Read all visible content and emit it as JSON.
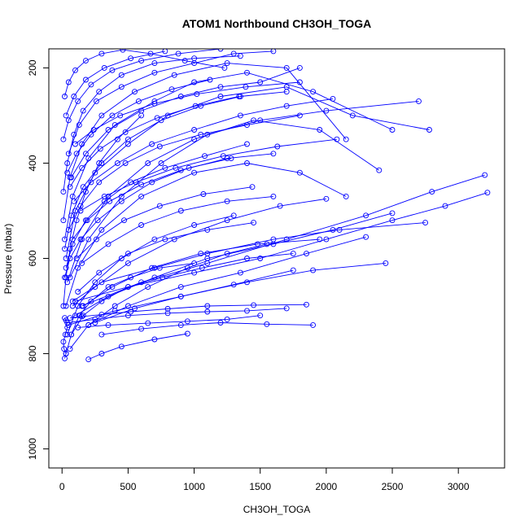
{
  "chart_data": {
    "type": "line",
    "title": "ATOM1 Northbound CH3OH_TOGA",
    "xlabel": "CH3OH_TOGA",
    "ylabel": "Pressure (mbar)",
    "xlim": [
      -100,
      3350
    ],
    "ylim": [
      1040,
      160
    ],
    "y_reversed": true,
    "grid": false,
    "series_color": "#0000ff",
    "marker": "open-circle",
    "x_ticks": [
      {
        "value": 0,
        "label": "0"
      },
      {
        "value": 500,
        "label": "500"
      },
      {
        "value": 1000,
        "label": "1000"
      },
      {
        "value": 1500,
        "label": "1500"
      },
      {
        "value": 2000,
        "label": "2000"
      },
      {
        "value": 2500,
        "label": "2500"
      },
      {
        "value": 3000,
        "label": "3000"
      }
    ],
    "y_ticks": [
      {
        "value": 200,
        "label": "200"
      },
      {
        "value": 400,
        "label": "400"
      },
      {
        "value": 600,
        "label": "600"
      },
      {
        "value": 800,
        "label": "800"
      },
      {
        "value": 1000,
        "label": "1000"
      }
    ],
    "series": [
      {
        "x": [
          20,
          30,
          15,
          10,
          25,
          40,
          30,
          20
        ],
        "y": [
          810,
          800,
          790,
          775,
          760,
          745,
          730,
          725
        ]
      },
      {
        "x": [
          60,
          150,
          300,
          520,
          800,
          1100,
          1450,
          1850
        ],
        "y": [
          725,
          722,
          718,
          712,
          706,
          700,
          698,
          697
        ]
      },
      {
        "x": [
          40,
          250,
          500,
          800,
          1100,
          1400,
          1700
        ],
        "y": [
          735,
          728,
          720,
          715,
          712,
          710,
          705
        ]
      },
      {
        "x": [
          120,
          350,
          650,
          950,
          1250,
          1500
        ],
        "y": [
          745,
          740,
          736,
          732,
          728,
          720
        ]
      },
      {
        "x": [
          200,
          300,
          450,
          700,
          950
        ],
        "y": [
          812,
          800,
          785,
          770,
          758
        ]
      },
      {
        "x": [
          300,
          600,
          900,
          1200,
          1550,
          1900
        ],
        "y": [
          760,
          748,
          740,
          735,
          738,
          740
        ]
      },
      {
        "x": [
          80,
          300,
          700,
          1100,
          1600,
          2100,
          2750
        ],
        "y": [
          690,
          650,
          620,
          590,
          560,
          540,
          525
        ]
      },
      {
        "x": [
          100,
          500,
          1000,
          1500,
          2000,
          2500,
          2900,
          3220
        ],
        "y": [
          690,
          660,
          630,
          600,
          560,
          520,
          490,
          462
        ]
      },
      {
        "x": [
          150,
          600,
          1100,
          1700,
          2300,
          2800,
          3200
        ],
        "y": [
          700,
          650,
          610,
          560,
          510,
          460,
          425
        ]
      },
      {
        "x": [
          50,
          400,
          900,
          1400,
          1900,
          2450
        ],
        "y": [
          740,
          710,
          680,
          650,
          625,
          610
        ]
      },
      {
        "x": [
          60,
          200,
          450,
          750,
          1100,
          1500,
          2000,
          2700
        ],
        "y": [
          640,
          560,
          470,
          400,
          340,
          310,
          290,
          270
        ]
      },
      {
        "x": [
          30,
          100,
          250,
          500,
          800,
          1200,
          1700,
          2200,
          2780
        ],
        "y": [
          600,
          500,
          420,
          360,
          300,
          260,
          240,
          300,
          330
        ]
      },
      {
        "x": [
          20,
          80,
          200,
          400,
          700,
          1000,
          1400,
          1900,
          2500
        ],
        "y": [
          560,
          470,
          390,
          320,
          270,
          230,
          210,
          250,
          330
        ]
      },
      {
        "x": [
          40,
          150,
          350,
          650,
          1000,
          1450,
          1950,
          2400
        ],
        "y": [
          650,
          560,
          470,
          400,
          350,
          310,
          330,
          415
        ]
      },
      {
        "x": [
          10,
          60,
          150,
          300,
          550,
          850,
          1250,
          1700,
          2150
        ],
        "y": [
          520,
          430,
          360,
          300,
          250,
          215,
          190,
          200,
          350
        ]
      },
      {
        "x": [
          30,
          120,
          300,
          600,
          1000,
          1400,
          1800,
          2150
        ],
        "y": [
          700,
          620,
          540,
          470,
          420,
          400,
          420,
          470
        ]
      },
      {
        "x": [
          80,
          250,
          500,
          850,
          1250,
          1650,
          2000
        ],
        "y": [
          700,
          660,
          610,
          560,
          520,
          490,
          475
        ]
      },
      {
        "x": [
          100,
          350,
          700,
          1100,
          1600,
          2050,
          2500
        ],
        "y": [
          720,
          680,
          640,
          600,
          570,
          540,
          505
        ]
      },
      {
        "x": [
          200,
          500,
          900,
          1350,
          1850,
          2300
        ],
        "y": [
          740,
          700,
          660,
          630,
          590,
          555
        ]
      },
      {
        "x": [
          250,
          550,
          900,
          1300,
          1750
        ],
        "y": [
          735,
          705,
          680,
          655,
          625
        ]
      },
      {
        "x": [
          10,
          40,
          90,
          160,
          280,
          450,
          700,
          1000,
          1350
        ],
        "y": [
          460,
          400,
          340,
          290,
          250,
          215,
          190,
          180,
          175
        ]
      },
      {
        "x": [
          50,
          130,
          260,
          450,
          700,
          1000,
          1300,
          1600
        ],
        "y": [
          380,
          320,
          270,
          240,
          210,
          190,
          170,
          165
        ]
      },
      {
        "x": [
          70,
          180,
          350,
          600,
          900,
          1200,
          1500,
          1800
        ],
        "y": [
          430,
          380,
          330,
          290,
          260,
          240,
          230,
          200
        ]
      },
      {
        "x": [
          20,
          70,
          160,
          300,
          500,
          750,
          1050,
          1350,
          1700
        ],
        "y": [
          580,
          510,
          450,
          400,
          350,
          310,
          280,
          260,
          250
        ]
      },
      {
        "x": [
          40,
          120,
          250,
          450,
          700,
          1000,
          1300
        ],
        "y": [
          760,
          700,
          650,
          600,
          560,
          530,
          510
        ]
      },
      {
        "x": [
          60,
          200,
          400,
          650,
          950,
          1250,
          1550
        ],
        "y": [
          790,
          740,
          700,
          660,
          620,
          590,
          570
        ]
      },
      {
        "x": [
          30,
          80,
          180,
          320,
          520,
          780,
          1080,
          1400
        ],
        "y": [
          620,
          570,
          520,
          480,
          440,
          410,
          385,
          360
        ]
      },
      {
        "x": [
          50,
          140,
          280,
          480,
          740,
          1050,
          1400,
          1800
        ],
        "y": [
          540,
          490,
          440,
          400,
          365,
          340,
          320,
          300
        ]
      },
      {
        "x": [
          10,
          50,
          120,
          220,
          380,
          600,
          880,
          1200
        ],
        "y": [
          350,
          310,
          270,
          235,
          205,
          185,
          170,
          160
        ]
      },
      {
        "x": [
          90,
          220,
          420,
          680,
          1000,
          1350,
          1700,
          2050
        ],
        "y": [
          480,
          440,
          400,
          360,
          330,
          300,
          280,
          265
        ]
      },
      {
        "x": [
          70,
          160,
          300,
          500,
          760,
          1060,
          1400,
          1750
        ],
        "y": [
          760,
          720,
          690,
          660,
          640,
          620,
          600,
          590
        ]
      },
      {
        "x": [
          120,
          280,
          500,
          780,
          1100,
          1450
        ],
        "y": [
          670,
          630,
          590,
          560,
          540,
          525
        ]
      },
      {
        "x": [
          150,
          350,
          600,
          900,
          1250,
          1600
        ],
        "y": [
          610,
          570,
          530,
          500,
          480,
          470
        ]
      },
      {
        "x": [
          40,
          110,
          220,
          380,
          580,
          830,
          1120
        ],
        "y": [
          420,
          380,
          340,
          300,
          270,
          245,
          225
        ]
      },
      {
        "x": [
          10,
          30,
          60,
          110,
          180,
          280,
          420,
          600
        ],
        "y": [
          700,
          640,
          580,
          520,
          460,
          400,
          350,
          300
        ]
      },
      {
        "x": [
          30,
          90,
          180,
          320,
          520,
          780
        ],
        "y": [
          300,
          260,
          225,
          200,
          180,
          165
        ]
      },
      {
        "x": [
          80,
          190,
          360,
          600,
          900,
          1250,
          1600
        ],
        "y": [
          560,
          520,
          480,
          445,
          415,
          390,
          380
        ]
      },
      {
        "x": [
          110,
          260,
          470,
          740,
          1070,
          1440
        ],
        "y": [
          600,
          560,
          520,
          490,
          465,
          450
        ]
      },
      {
        "x": [
          20,
          60,
          140,
          270,
          450,
          680,
          960,
          1280
        ],
        "y": [
          640,
          600,
          560,
          520,
          480,
          440,
          410,
          390
        ]
      },
      {
        "x": [
          160,
          380,
          680,
          1050,
          1480,
          1950
        ],
        "y": [
          700,
          660,
          620,
          590,
          570,
          560
        ]
      },
      {
        "x": [
          30,
          70,
          130,
          220,
          350,
          520,
          740,
          1000
        ],
        "y": [
          800,
          760,
          720,
          690,
          660,
          640,
          620,
          610
        ]
      },
      {
        "x": [
          60,
          150,
          290,
          480,
          720,
          1010,
          1340
        ],
        "y": [
          450,
          410,
          370,
          335,
          305,
          280,
          260
        ]
      },
      {
        "x": [
          20,
          50,
          100,
          180,
          300,
          460,
          670,
          930,
          1230
        ],
        "y": [
          260,
          230,
          205,
          185,
          170,
          162,
          170,
          185,
          200
        ]
      },
      {
        "x": [
          140,
          320,
          560,
          860,
          1220,
          1630,
          2080
        ],
        "y": [
          500,
          470,
          440,
          410,
          385,
          365,
          350
        ]
      },
      {
        "x": [
          100,
          240,
          440,
          700,
          1020,
          1390,
          1800
        ],
        "y": [
          360,
          330,
          300,
          275,
          255,
          240,
          230
        ]
      }
    ]
  }
}
